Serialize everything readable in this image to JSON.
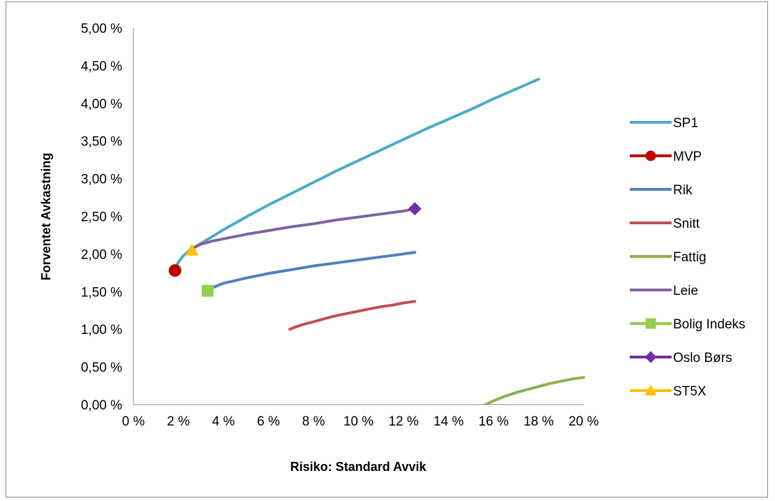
{
  "chart_data": {
    "type": "line",
    "title": "",
    "xlabel": "Risiko: Standard Avvik",
    "ylabel": "Forventet Avkastning",
    "xlim": [
      0,
      0.2
    ],
    "ylim": [
      0,
      0.05
    ],
    "x_ticks": [
      0,
      0.02,
      0.04,
      0.06,
      0.08,
      0.1,
      0.12,
      0.14,
      0.16,
      0.18,
      0.2
    ],
    "x_tick_labels": [
      "0 %",
      "2 %",
      "4 %",
      "6 %",
      "8 %",
      "10 %",
      "12 %",
      "14 %",
      "16 %",
      "18 %",
      "20 %"
    ],
    "y_ticks": [
      0,
      0.005,
      0.01,
      0.015,
      0.02,
      0.025,
      0.03,
      0.035,
      0.04,
      0.045,
      0.05
    ],
    "y_tick_labels": [
      "0,00 %",
      "0,50 %",
      "1,00 %",
      "1,50 %",
      "2,00 %",
      "2,50 %",
      "3,00 %",
      "3,50 %",
      "4,00 %",
      "4,50 %",
      "5,00 %"
    ],
    "grid": false,
    "legend_position": "right",
    "series": [
      {
        "name": "SP1",
        "kind": "line",
        "color": "#4bacc6",
        "x": [
          0.0185,
          0.019,
          0.02,
          0.022,
          0.025,
          0.03,
          0.04,
          0.05,
          0.06,
          0.07,
          0.08,
          0.09,
          0.1,
          0.11,
          0.12,
          0.13,
          0.14,
          0.15,
          0.16,
          0.17,
          0.18
        ],
        "y": [
          0.0178,
          0.0183,
          0.0189,
          0.0197,
          0.0205,
          0.0214,
          0.0232,
          0.0249,
          0.0265,
          0.028,
          0.0295,
          0.031,
          0.0324,
          0.0338,
          0.0352,
          0.0366,
          0.0379,
          0.0392,
          0.0406,
          0.0419,
          0.0432
        ]
      },
      {
        "name": "MVP",
        "kind": "marker",
        "marker": "circle",
        "color": "#c00000",
        "x": [
          0.0185
        ],
        "y": [
          0.0178
        ]
      },
      {
        "name": "Rik",
        "kind": "line",
        "color": "#4f81bd",
        "x": [
          0.033,
          0.035,
          0.04,
          0.05,
          0.06,
          0.07,
          0.08,
          0.09,
          0.1,
          0.11,
          0.12,
          0.125
        ],
        "y": [
          0.0151,
          0.0155,
          0.0161,
          0.0168,
          0.0174,
          0.0179,
          0.0184,
          0.0188,
          0.0192,
          0.0196,
          0.02,
          0.0202
        ]
      },
      {
        "name": "Snitt",
        "kind": "line",
        "color": "#c0504d",
        "x": [
          0.0695,
          0.072,
          0.075,
          0.08,
          0.085,
          0.09,
          0.095,
          0.1,
          0.105,
          0.11,
          0.115,
          0.12,
          0.125
        ],
        "y": [
          0.01,
          0.0103,
          0.0106,
          0.011,
          0.0114,
          0.0118,
          0.0121,
          0.0124,
          0.0127,
          0.013,
          0.0132,
          0.0135,
          0.0137
        ]
      },
      {
        "name": "Fattig",
        "kind": "line",
        "color": "#8db04f",
        "x": [
          0.155,
          0.16,
          0.165,
          0.17,
          0.175,
          0.18,
          0.185,
          0.19,
          0.195,
          0.2
        ],
        "y": [
          -0.0002,
          0.0005,
          0.0011,
          0.0016,
          0.002,
          0.0024,
          0.0028,
          0.0031,
          0.0034,
          0.0036
        ]
      },
      {
        "name": "Leie",
        "kind": "line",
        "color": "#8064a2",
        "x": [
          0.026,
          0.028,
          0.03,
          0.035,
          0.04,
          0.05,
          0.06,
          0.07,
          0.08,
          0.09,
          0.1,
          0.11,
          0.12,
          0.125
        ],
        "y": [
          0.0206,
          0.021,
          0.0213,
          0.0217,
          0.022,
          0.0226,
          0.0231,
          0.0236,
          0.024,
          0.0245,
          0.0249,
          0.0253,
          0.0257,
          0.026
        ]
      },
      {
        "name": "Bolig Indeks",
        "kind": "marker",
        "marker": "square",
        "color": "#92d050",
        "x": [
          0.033
        ],
        "y": [
          0.0151
        ]
      },
      {
        "name": "Oslo Børs",
        "kind": "marker",
        "marker": "diamond",
        "color": "#7030a0",
        "x": [
          0.125
        ],
        "y": [
          0.026
        ]
      },
      {
        "name": "ST5X",
        "kind": "marker",
        "marker": "triangle",
        "color": "#ffc000",
        "x": [
          0.026
        ],
        "y": [
          0.0205
        ]
      }
    ]
  }
}
